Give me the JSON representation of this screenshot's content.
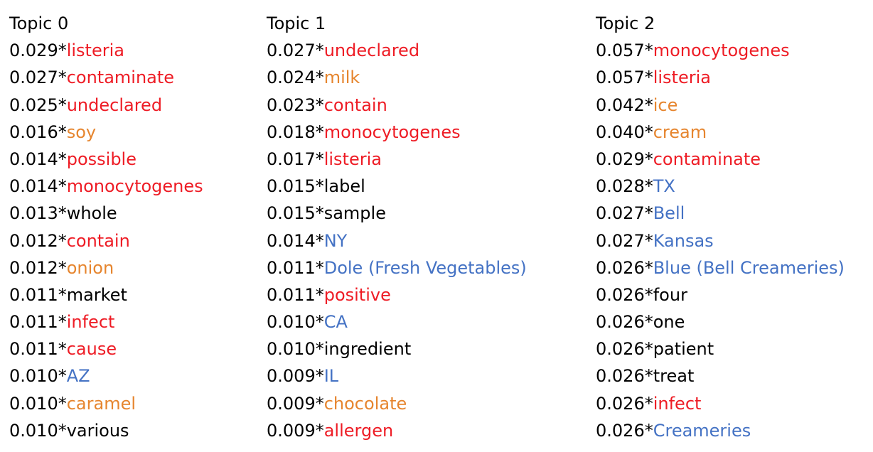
{
  "colors": {
    "red": "#ee1c25",
    "orange": "#e6852e",
    "blue": "#4472c4",
    "black": "#000000"
  },
  "topics": [
    {
      "title": "Topic 0",
      "terms": [
        {
          "weight": "0.029*",
          "word": "listeria",
          "color": "red"
        },
        {
          "weight": "0.027*",
          "word": "contaminate",
          "color": "red"
        },
        {
          "weight": "0.025*",
          "word": "undeclared",
          "color": "red"
        },
        {
          "weight": "0.016*",
          "word": "soy",
          "color": "orange"
        },
        {
          "weight": "0.014*",
          "word": "possible",
          "color": "red"
        },
        {
          "weight": "0.014*",
          "word": "monocytogenes",
          "color": "red"
        },
        {
          "weight": "0.013*",
          "word": "whole",
          "color": "black"
        },
        {
          "weight": "0.012*",
          "word": "contain",
          "color": "red"
        },
        {
          "weight": "0.012*",
          "word": "onion",
          "color": "orange"
        },
        {
          "weight": "0.011*",
          "word": "market",
          "color": "black"
        },
        {
          "weight": "0.011*",
          "word": "infect",
          "color": "red"
        },
        {
          "weight": "0.011*",
          "word": "cause",
          "color": "red"
        },
        {
          "weight": "0.010*",
          "word": "AZ",
          "color": "blue"
        },
        {
          "weight": "0.010*",
          "word": "caramel",
          "color": "orange"
        },
        {
          "weight": "0.010*",
          "word": "various",
          "color": "black"
        }
      ]
    },
    {
      "title": "Topic 1",
      "terms": [
        {
          "weight": "0.027*",
          "word": "undeclared",
          "color": "red"
        },
        {
          "weight": "0.024*",
          "word": "milk",
          "color": "orange"
        },
        {
          "weight": "0.023*",
          "word": "contain",
          "color": "red"
        },
        {
          "weight": "0.018*",
          "word": "monocytogenes",
          "color": "red"
        },
        {
          "weight": "0.017*",
          "word": "listeria",
          "color": "red"
        },
        {
          "weight": "0.015*",
          "word": "label",
          "color": "black"
        },
        {
          "weight": "0.015*",
          "word": "sample",
          "color": "black"
        },
        {
          "weight": "0.014*",
          "word": "NY",
          "color": "blue"
        },
        {
          "weight": "0.011*",
          "word": "Dole (Fresh Vegetables)",
          "color": "blue"
        },
        {
          "weight": "0.011*",
          "word": "positive",
          "color": "red"
        },
        {
          "weight": "0.010*",
          "word": "CA",
          "color": "blue"
        },
        {
          "weight": "0.010*",
          "word": "ingredient",
          "color": "black"
        },
        {
          "weight": "0.009*",
          "word": "IL",
          "color": "blue"
        },
        {
          "weight": "0.009*",
          "word": "chocolate",
          "color": "orange"
        },
        {
          "weight": "0.009*",
          "word": "allergen",
          "color": "red"
        }
      ]
    },
    {
      "title": "Topic 2",
      "terms": [
        {
          "weight": "0.057*",
          "word": "monocytogenes",
          "color": "red"
        },
        {
          "weight": "0.057*",
          "word": "listeria",
          "color": "red"
        },
        {
          "weight": "0.042*",
          "word": "ice",
          "color": "orange"
        },
        {
          "weight": "0.040*",
          "word": "cream",
          "color": "orange"
        },
        {
          "weight": "0.029*",
          "word": "contaminate",
          "color": "red"
        },
        {
          "weight": "0.028*",
          "word": "TX",
          "color": "blue"
        },
        {
          "weight": "0.027*",
          "word": "Bell",
          "color": "blue"
        },
        {
          "weight": "0.027*",
          "word": "Kansas",
          "color": "blue"
        },
        {
          "weight": "0.026*",
          "word": "Blue (Bell Creameries)",
          "color": "blue"
        },
        {
          "weight": "0.026*",
          "word": "four",
          "color": "black"
        },
        {
          "weight": "0.026*",
          "word": "one",
          "color": "black"
        },
        {
          "weight": "0.026*",
          "word": "patient",
          "color": "black"
        },
        {
          "weight": "0.026*",
          "word": "treat",
          "color": "black"
        },
        {
          "weight": "0.026*",
          "word": "infect",
          "color": "red"
        },
        {
          "weight": "0.026*",
          "word": "Creameries",
          "color": "blue"
        }
      ]
    }
  ]
}
